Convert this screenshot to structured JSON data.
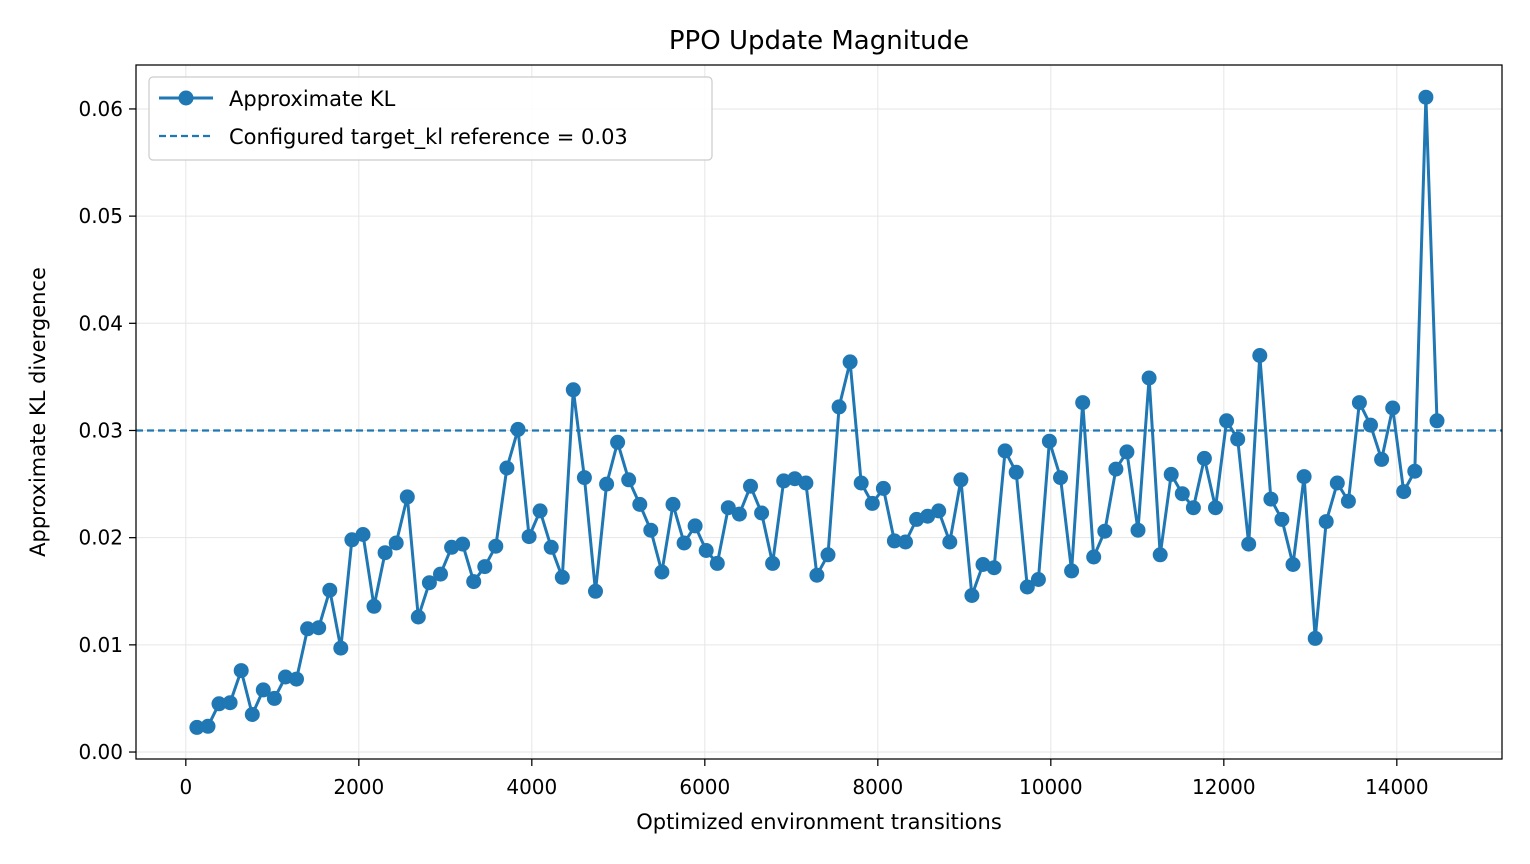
{
  "chart_data": {
    "type": "line",
    "title": "PPO Update Magnitude",
    "xlabel": "Optimized environment transitions",
    "ylabel": "Approximate KL divergence",
    "xlim": [
      -576,
      15216
    ],
    "ylim": [
      -0.00065,
      0.0641
    ],
    "xticks": [
      0,
      2000,
      4000,
      6000,
      8000,
      10000,
      12000,
      14000
    ],
    "xtick_labels": [
      "0",
      "2000",
      "4000",
      "6000",
      "8000",
      "10000",
      "12000",
      "14000"
    ],
    "yticks": [
      0.0,
      0.01,
      0.02,
      0.03,
      0.04,
      0.05,
      0.06
    ],
    "ytick_labels": [
      "0.00",
      "0.01",
      "0.02",
      "0.03",
      "0.04",
      "0.05",
      "0.06"
    ],
    "grid": true,
    "legend_position": "top-left",
    "colors": {
      "series": "#1f77b4",
      "grid": "#e6e6e6",
      "axes": "#000000"
    },
    "series": [
      {
        "name": "Approximate KL",
        "style": "line-with-markers",
        "x": [
          128,
          256,
          384,
          512,
          640,
          768,
          896,
          1024,
          1152,
          1280,
          1408,
          1536,
          1664,
          1792,
          1920,
          2048,
          2176,
          2304,
          2432,
          2560,
          2688,
          2816,
          2944,
          3072,
          3200,
          3328,
          3456,
          3584,
          3712,
          3840,
          3968,
          4096,
          4224,
          4352,
          4480,
          4608,
          4736,
          4864,
          4992,
          5120,
          5248,
          5376,
          5504,
          5632,
          5760,
          5888,
          6016,
          6144,
          6272,
          6400,
          6528,
          6656,
          6784,
          6912,
          7040,
          7168,
          7296,
          7424,
          7552,
          7680,
          7808,
          7936,
          8064,
          8192,
          8320,
          8448,
          8576,
          8704,
          8832,
          8960,
          9088,
          9216,
          9344,
          9472,
          9600,
          9728,
          9856,
          9984,
          10112,
          10240,
          10368,
          10496,
          10624,
          10752,
          10880,
          11008,
          11136,
          11264,
          11392,
          11520,
          11648,
          11776,
          11904,
          12032,
          12160,
          12288,
          12416,
          12544,
          12672,
          12800,
          12928,
          13056,
          13184,
          13312,
          13440,
          13568,
          13696,
          13824,
          13952,
          14080,
          14208,
          14336,
          14464
        ],
        "y": [
          0.0023,
          0.0024,
          0.0045,
          0.0046,
          0.0076,
          0.0035,
          0.0058,
          0.005,
          0.007,
          0.0068,
          0.0115,
          0.0116,
          0.0151,
          0.0097,
          0.0198,
          0.0203,
          0.0136,
          0.0186,
          0.0195,
          0.0238,
          0.0126,
          0.0158,
          0.0166,
          0.0191,
          0.0194,
          0.0159,
          0.0173,
          0.0192,
          0.0265,
          0.0301,
          0.0201,
          0.0225,
          0.0191,
          0.0163,
          0.0338,
          0.0256,
          0.015,
          0.025,
          0.0289,
          0.0254,
          0.0231,
          0.0207,
          0.0168,
          0.0231,
          0.0195,
          0.0211,
          0.0188,
          0.0176,
          0.0228,
          0.0222,
          0.0248,
          0.0223,
          0.0176,
          0.0253,
          0.0255,
          0.0251,
          0.0165,
          0.0184,
          0.0322,
          0.0364,
          0.0251,
          0.0232,
          0.0246,
          0.0197,
          0.0196,
          0.0217,
          0.022,
          0.0225,
          0.0196,
          0.0254,
          0.0146,
          0.0175,
          0.0172,
          0.0281,
          0.0261,
          0.0154,
          0.0161,
          0.029,
          0.0256,
          0.0169,
          0.0326,
          0.0182,
          0.0206,
          0.0264,
          0.028,
          0.0207,
          0.0349,
          0.0184,
          0.0259,
          0.0241,
          0.0228,
          0.0274,
          0.0228,
          0.0309,
          0.0292,
          0.0194,
          0.037,
          0.0236,
          0.0217,
          0.0175,
          0.0257,
          0.0106,
          0.0215,
          0.0251,
          0.0234,
          0.0326,
          0.0305,
          0.0273,
          0.0321,
          0.0243,
          0.0262,
          0.0611,
          0.0309
        ]
      },
      {
        "name": "Configured target_kl reference = 0.03",
        "style": "dashed-horizontal",
        "y": 0.03
      }
    ]
  }
}
